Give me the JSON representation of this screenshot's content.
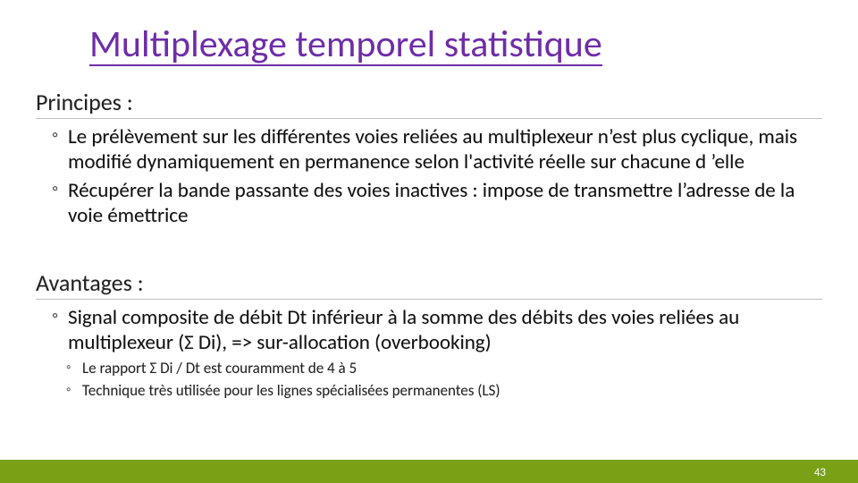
{
  "title": "Multiplexage temporel statistique",
  "colors": {
    "title_color": "#6f2da8",
    "title_underline": "#6f2da8",
    "heading_underline": "#bfbfbf",
    "body_text": "#111111",
    "footer_bar": "#7aa016",
    "page_number": "#ffffff",
    "background": "#ffffff"
  },
  "typography": {
    "title_fontsize": 42,
    "heading_fontsize": 26,
    "bullet_fontsize": 23,
    "sub_bullet_fontsize": 17,
    "page_number_fontsize": 13,
    "font_family": "Calibri"
  },
  "sections": {
    "principes": {
      "heading": "Principes :",
      "bullets": [
        "Le prélèvement sur les différentes voies reliées au multiplexeur n’est plus cyclique, mais modifié dynamiquement en permanence selon l'activité réelle sur chacune d ’elle",
        "Récupérer la bande passante des voies inactives : impose de transmettre l’adresse de la voie émettrice"
      ]
    },
    "avantages": {
      "heading": "Avantages :",
      "bullets": [
        "Signal composite de débit Dt inférieur à la somme des débits des voies reliées au multiplexeur (Σ Di), => sur-allocation (overbooking)"
      ],
      "sub_bullets": [
        "Le rapport Σ Di / Dt est couramment de 4 à 5",
        "Technique très utilisée pour les lignes spécialisées permanentes (LS)"
      ]
    }
  },
  "page_number": "43"
}
